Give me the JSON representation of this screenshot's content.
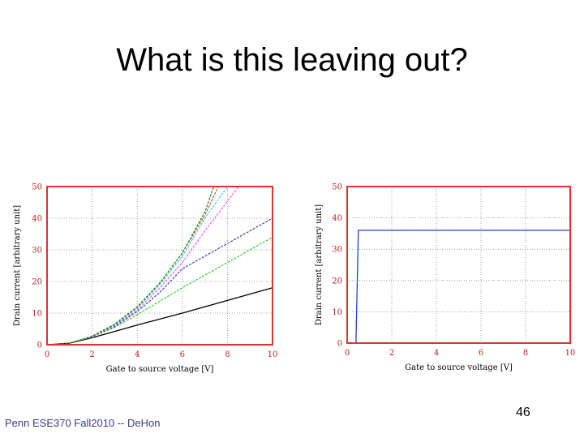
{
  "slide": {
    "title": "What is this leaving out?",
    "footer": "Penn ESE370 Fall2010 -- DeHon",
    "page_number": "46"
  },
  "chart_data": [
    {
      "type": "line",
      "xlabel": "Gate to source voltage [V]",
      "ylabel": "Drain current [arbitrary unit]",
      "xlim": [
        0,
        10
      ],
      "ylim": [
        0,
        50
      ],
      "xticks": [
        "0",
        "2",
        "4",
        "6",
        "8",
        "10"
      ],
      "yticks": [
        "0",
        "10",
        "20",
        "30",
        "40",
        "50"
      ],
      "grid": true,
      "frame_color": "#e03030",
      "series": [
        {
          "color": "#000000",
          "x": [
            0,
            1,
            2,
            3,
            4,
            6,
            8,
            10
          ],
          "y": [
            0,
            0.5,
            2.2,
            4.2,
            6.2,
            10,
            14,
            18
          ]
        },
        {
          "color": "#22cc22",
          "x": [
            0,
            1,
            2,
            3,
            4,
            6,
            8,
            10
          ],
          "y": [
            0,
            0.5,
            2.5,
            5.5,
            9.5,
            18,
            26,
            34
          ]
        },
        {
          "color": "#3333aa",
          "x": [
            0,
            1,
            2,
            3,
            4,
            5,
            6,
            8,
            10
          ],
          "y": [
            0,
            0.5,
            2.5,
            5.8,
            10.5,
            16.5,
            24,
            32,
            40
          ]
        },
        {
          "color": "#ff44ff",
          "x": [
            0,
            1,
            2,
            3,
            4,
            5,
            6,
            7,
            8.5
          ],
          "y": [
            0,
            0.5,
            2.5,
            6,
            11,
            18,
            26,
            36,
            50
          ]
        },
        {
          "color": "#22cccc",
          "x": [
            0,
            1,
            2,
            3,
            4,
            5,
            6,
            7,
            8
          ],
          "y": [
            0,
            0.5,
            2.6,
            6.2,
            11.5,
            19,
            28,
            40,
            50
          ]
        },
        {
          "color": "#ff3333",
          "x": [
            0,
            1,
            2,
            3,
            4,
            5,
            6,
            7,
            7.6
          ],
          "y": [
            0,
            0.5,
            2.7,
            6.5,
            12,
            19.5,
            29,
            41,
            50
          ]
        },
        {
          "color": "#008800",
          "x": [
            0,
            1,
            2,
            3,
            4,
            5,
            6,
            7,
            7.4
          ],
          "y": [
            0,
            0.5,
            2.7,
            6.5,
            12,
            19.5,
            29,
            42,
            50
          ]
        }
      ]
    },
    {
      "type": "line",
      "xlabel": "Gate to source voltage [V]",
      "ylabel": "Drain current [arbitrary unit]",
      "xlim": [
        0,
        10
      ],
      "ylim": [
        0,
        50
      ],
      "xticks": [
        "0",
        "2",
        "4",
        "6",
        "8",
        "10"
      ],
      "yticks": [
        "0",
        "10",
        "20",
        "30",
        "40",
        "50"
      ],
      "grid": true,
      "frame_color": "#e03030",
      "series": [
        {
          "color": "#2244cc",
          "x": [
            0.4,
            0.4,
            0.5,
            10
          ],
          "y": [
            0,
            2,
            36,
            36
          ]
        }
      ]
    }
  ]
}
